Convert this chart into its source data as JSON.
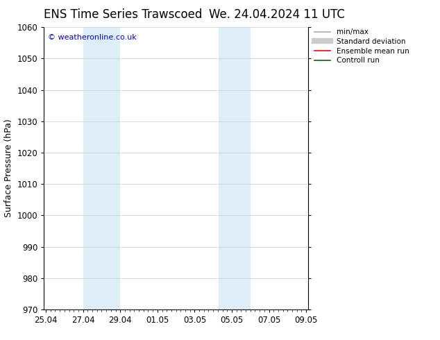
{
  "title_left": "ENS Time Series Trawscoed",
  "title_right": "We. 24.04.2024 11 UTC",
  "ylabel": "Surface Pressure (hPa)",
  "ylim": [
    970,
    1060
  ],
  "yticks": [
    970,
    980,
    990,
    1000,
    1010,
    1020,
    1030,
    1040,
    1050,
    1060
  ],
  "xtick_labels": [
    "25.04",
    "27.04",
    "29.04",
    "01.05",
    "03.05",
    "05.05",
    "07.05",
    "09.05"
  ],
  "xtick_positions": [
    0,
    2,
    4,
    6,
    8,
    10,
    12,
    14
  ],
  "shaded_bands": [
    {
      "x_start": 2,
      "x_end": 4,
      "color": "#ddeef8"
    },
    {
      "x_start": 9.3,
      "x_end": 11.0,
      "color": "#ddeef8"
    }
  ],
  "copyright_text": "© weatheronline.co.uk",
  "copyright_color": "#0000cc",
  "legend_items": [
    {
      "label": "min/max",
      "color": "#aaaaaa",
      "lw": 1.2
    },
    {
      "label": "Standard deviation",
      "color": "#cccccc",
      "lw": 6
    },
    {
      "label": "Ensemble mean run",
      "color": "#ff0000",
      "lw": 1.2
    },
    {
      "label": "Controll run",
      "color": "#006600",
      "lw": 1.2
    }
  ],
  "bg_color": "#ffffff",
  "grid_color": "#cccccc",
  "title_fontsize": 12,
  "axis_fontsize": 9,
  "tick_fontsize": 8.5,
  "legend_fontsize": 7.5
}
